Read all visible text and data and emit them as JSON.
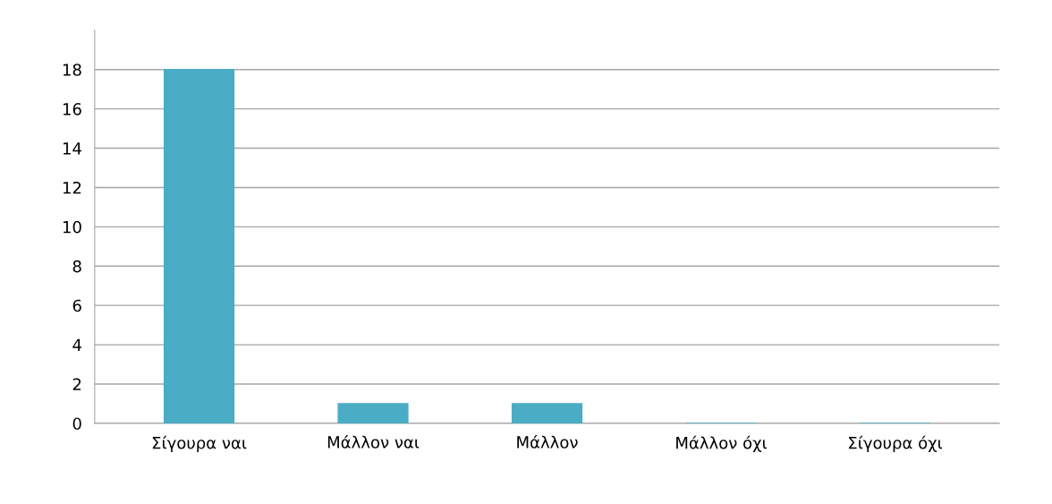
{
  "chart_data": {
    "type": "bar",
    "categories": [
      "Σίγουρα ναι",
      "Μάλλον ναι",
      "Μάλλον",
      "Μάλλον όχι",
      "Σίγουρα όχι"
    ],
    "values": [
      18,
      1,
      1,
      0,
      0
    ],
    "color": "#4bacc6",
    "ylim": [
      0,
      20
    ],
    "yticks": [
      0,
      2,
      4,
      6,
      8,
      10,
      12,
      14,
      16,
      18
    ],
    "grid": "y"
  }
}
